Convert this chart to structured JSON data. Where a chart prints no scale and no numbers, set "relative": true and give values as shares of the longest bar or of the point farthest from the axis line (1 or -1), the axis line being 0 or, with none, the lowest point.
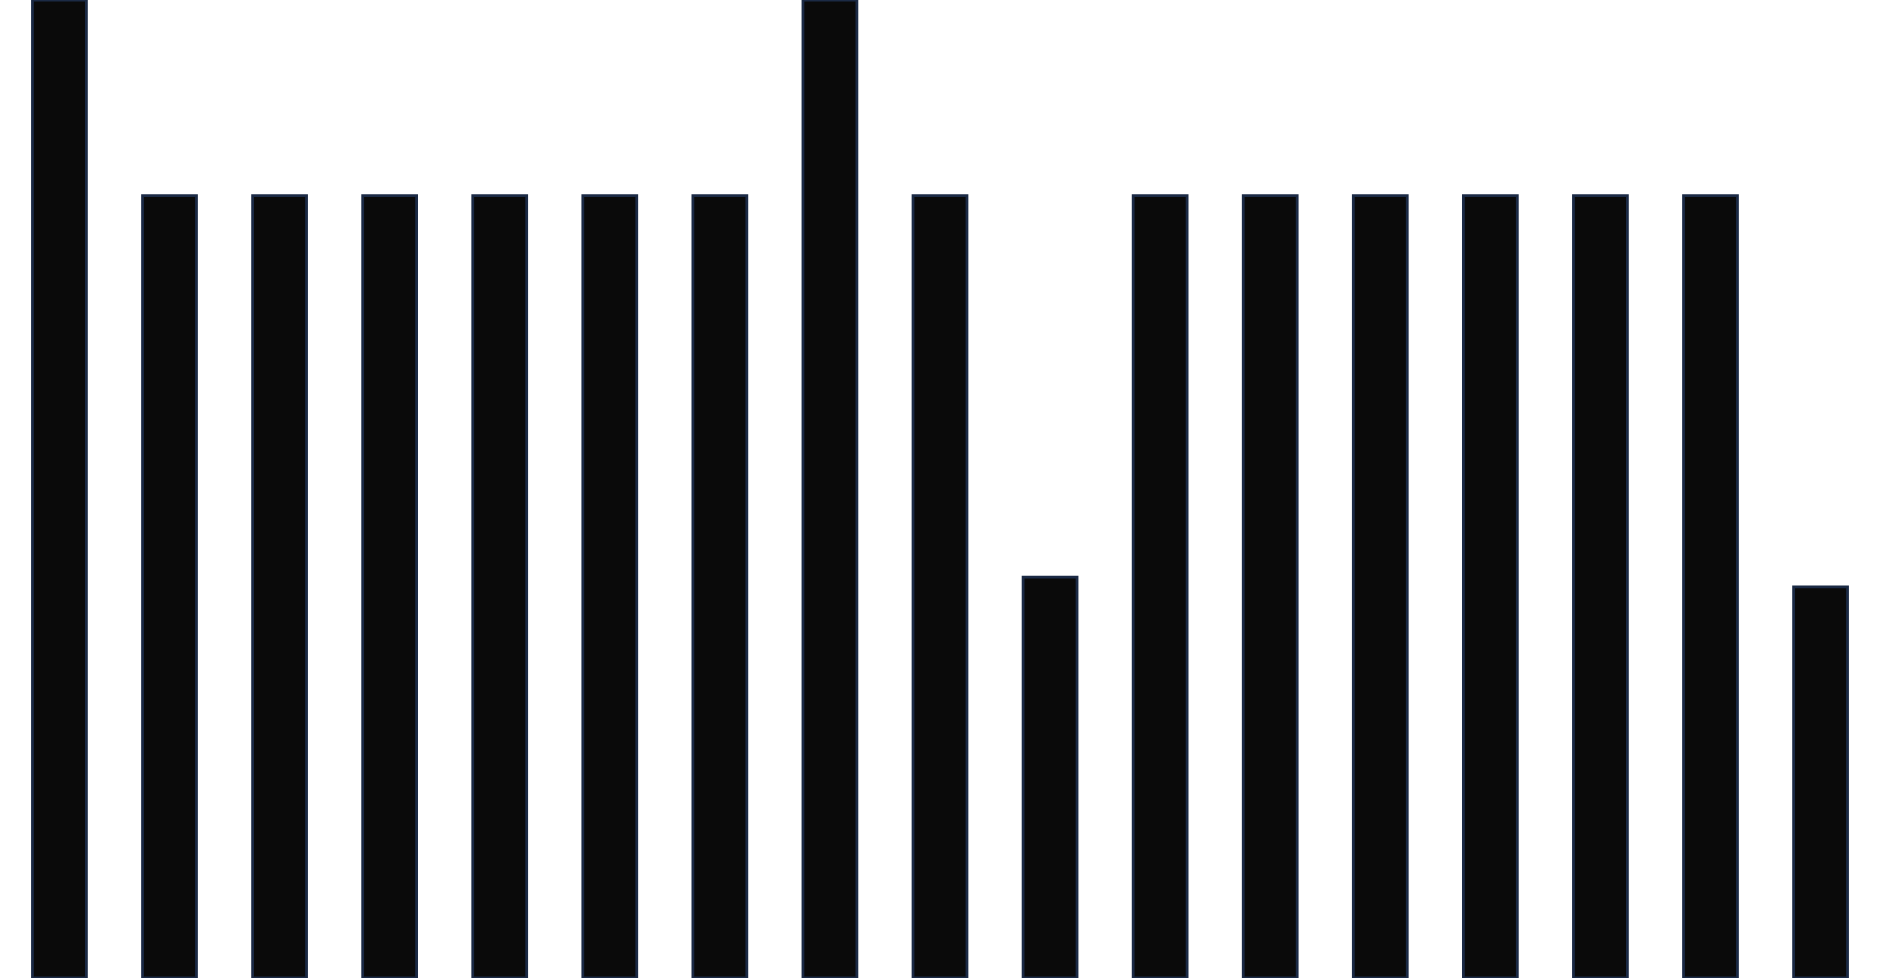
{
  "chart_data": {
    "type": "bar",
    "relative": true,
    "categories": [
      null,
      null,
      null,
      null,
      null,
      null,
      null,
      null,
      null,
      null,
      null,
      null,
      null,
      null,
      null,
      null,
      null
    ],
    "values": [
      1,
      0.8,
      0.8,
      0.8,
      0.8,
      0.8,
      0.8,
      1,
      0.8,
      0.41,
      0.8,
      0.8,
      0.8,
      0.8,
      0.8,
      0.8,
      0.4
    ],
    "color": "#0a0a0a",
    "grid": false,
    "legend": false
  }
}
